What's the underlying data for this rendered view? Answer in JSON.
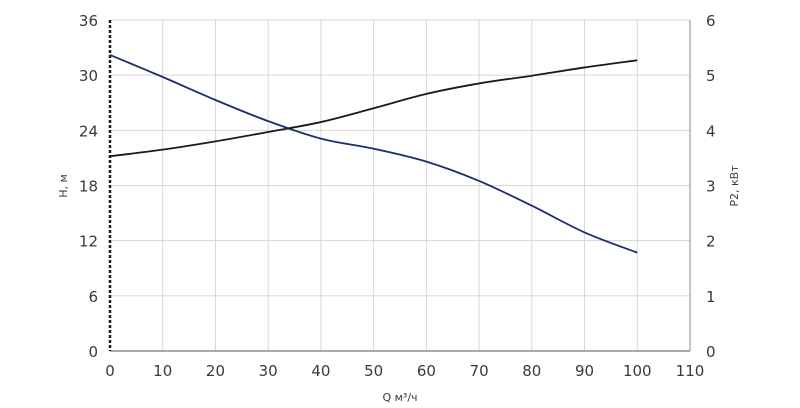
{
  "chart_data": {
    "type": "line",
    "xlabel": "Q м³/ч",
    "ylabel_left": "H, м",
    "ylabel_right": "P2, кВт",
    "xlim": [
      0,
      110
    ],
    "ylim_left": [
      0,
      36
    ],
    "ylim_right": [
      0,
      6
    ],
    "x_ticks": [
      "0",
      "10",
      "20",
      "30",
      "40",
      "50",
      "60",
      "70",
      "80",
      "90",
      "100",
      "110"
    ],
    "y_left_ticks": [
      "0",
      "6",
      "12",
      "18",
      "24",
      "30",
      "36"
    ],
    "y_right_ticks": [
      "0",
      "1",
      "2",
      "3",
      "4",
      "5",
      "6"
    ],
    "grid": true,
    "series": [
      {
        "axis": "left",
        "color": "#1e2d6e",
        "points": [
          [
            0,
            32.2
          ],
          [
            10,
            29.8
          ],
          [
            20,
            27.3
          ],
          [
            30,
            25.0
          ],
          [
            40,
            23.1
          ],
          [
            50,
            22.0
          ],
          [
            60,
            20.6
          ],
          [
            70,
            18.5
          ],
          [
            80,
            15.8
          ],
          [
            90,
            12.9
          ],
          [
            100,
            10.7
          ]
        ]
      },
      {
        "axis": "right",
        "color": "#1a1a1a",
        "points": [
          [
            0,
            3.53
          ],
          [
            10,
            3.65
          ],
          [
            20,
            3.8
          ],
          [
            30,
            3.97
          ],
          [
            40,
            4.15
          ],
          [
            50,
            4.4
          ],
          [
            60,
            4.66
          ],
          [
            70,
            4.85
          ],
          [
            80,
            4.99
          ],
          [
            90,
            5.14
          ],
          [
            100,
            5.27
          ]
        ]
      }
    ]
  }
}
